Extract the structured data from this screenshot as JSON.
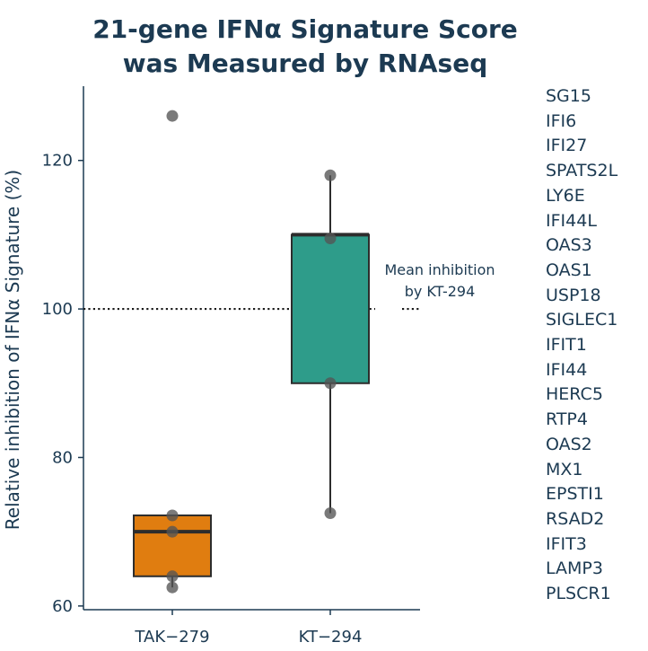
{
  "title": {
    "line1": "21-gene IFNα Signature Score",
    "line2": "was Measured by RNAseq"
  },
  "colors": {
    "title": "#1c3a52",
    "axis": "#1c3a52",
    "tak_box": "#e07d10",
    "kt_box": "#2e9c8a",
    "box_border": "#2d2d2d",
    "points": "#555555"
  },
  "chart_data": {
    "type": "box",
    "title": "21-gene IFNα Signature Score was Measured by RNAseq",
    "xlabel": "",
    "ylabel": "Relative inhibition of IFNα Signature (%)",
    "ylim": [
      59.5,
      130
    ],
    "yticks": [
      60,
      80,
      100,
      120
    ],
    "categories": [
      "TAK−279",
      "KT−294"
    ],
    "boxes": [
      {
        "name": "TAK−279",
        "q1": 64,
        "median": 70,
        "q3": 72.2,
        "whisker_low": 62.5,
        "whisker_high": 72.2,
        "color": "#e07d10",
        "points": [
          126,
          72.2,
          70,
          64,
          62.5
        ]
      },
      {
        "name": "KT−294",
        "q1": 90,
        "median": 110,
        "q3": 110,
        "whisker_low": 72.5,
        "whisker_high": 118,
        "color": "#2e9c8a",
        "points": [
          118,
          109.5,
          90,
          72.5
        ]
      }
    ],
    "reference_line": {
      "y": 100,
      "style": "dotted"
    },
    "annotation": {
      "line1": "Mean inhibition",
      "line2": "by KT-294"
    }
  },
  "genes": [
    "SG15",
    "IFI6",
    "IFI27",
    "SPATS2L",
    "LY6E",
    "IFI44L",
    "OAS3",
    "OAS1",
    "USP18",
    "SIGLEC1",
    "IFIT1",
    "IFI44",
    "HERC5",
    "RTP4",
    "OAS2",
    "MX1",
    "EPSTI1",
    "RSAD2",
    "IFIT3",
    "LAMP3",
    "PLSCR1"
  ]
}
